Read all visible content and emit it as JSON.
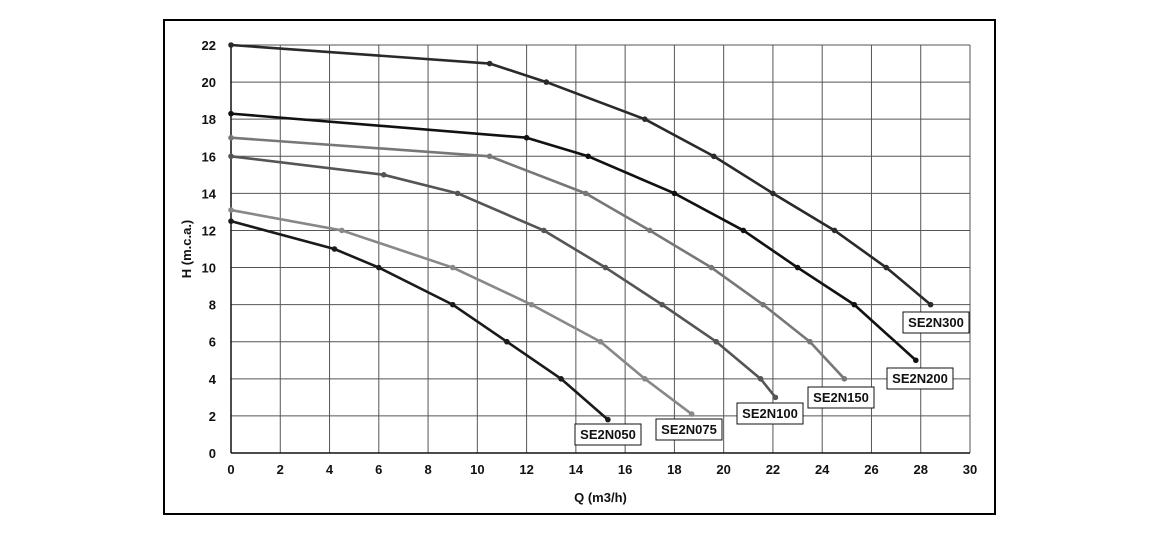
{
  "chart_data": {
    "type": "line",
    "xlabel": "Q (m3/h)",
    "ylabel": "H (m.c.a.)",
    "xlim": [
      0,
      30
    ],
    "ylim": [
      0,
      22
    ],
    "x_ticks": [
      0,
      2,
      4,
      6,
      8,
      10,
      12,
      14,
      16,
      18,
      20,
      22,
      24,
      26,
      28,
      30
    ],
    "y_ticks": [
      0,
      2,
      4,
      6,
      8,
      10,
      12,
      14,
      16,
      18,
      20,
      22
    ],
    "grid": true,
    "legend": "labels at line ends",
    "series": [
      {
        "name": "SE2N300",
        "color": "#2a2a2a",
        "points": [
          [
            0,
            22
          ],
          [
            10.5,
            21
          ],
          [
            12.8,
            20
          ],
          [
            16.8,
            18
          ],
          [
            19.6,
            16
          ],
          [
            22,
            14
          ],
          [
            24.5,
            12
          ],
          [
            26.6,
            10
          ],
          [
            28.4,
            8
          ]
        ]
      },
      {
        "name": "SE2N200",
        "color": "#111111",
        "points": [
          [
            0,
            18.3
          ],
          [
            12,
            17
          ],
          [
            14.5,
            16
          ],
          [
            18,
            14
          ],
          [
            20.8,
            12
          ],
          [
            23,
            10
          ],
          [
            25.3,
            8
          ],
          [
            27.8,
            5
          ]
        ]
      },
      {
        "name": "SE2N150",
        "color": "#777777",
        "points": [
          [
            0,
            17
          ],
          [
            10.5,
            16
          ],
          [
            14.4,
            14
          ],
          [
            17,
            12
          ],
          [
            19.5,
            10
          ],
          [
            21.6,
            8
          ],
          [
            23.5,
            6
          ],
          [
            24.9,
            4
          ]
        ]
      },
      {
        "name": "SE2N100",
        "color": "#555555",
        "points": [
          [
            0,
            16
          ],
          [
            6.2,
            15
          ],
          [
            9.2,
            14
          ],
          [
            12.7,
            12
          ],
          [
            15.2,
            10
          ],
          [
            17.5,
            8
          ],
          [
            19.7,
            6
          ],
          [
            21.5,
            4
          ],
          [
            22.1,
            3
          ]
        ]
      },
      {
        "name": "SE2N075",
        "color": "#888888",
        "points": [
          [
            0,
            13.1
          ],
          [
            4.5,
            12
          ],
          [
            9,
            10
          ],
          [
            12.2,
            8
          ],
          [
            15,
            6
          ],
          [
            16.8,
            4
          ],
          [
            18.7,
            2.1
          ]
        ]
      },
      {
        "name": "SE2N050",
        "color": "#1a1a1a",
        "points": [
          [
            0,
            12.5
          ],
          [
            4.2,
            11
          ],
          [
            6,
            10
          ],
          [
            9,
            8
          ],
          [
            11.2,
            6
          ],
          [
            13.4,
            4
          ],
          [
            15.3,
            1.8
          ]
        ]
      }
    ]
  }
}
